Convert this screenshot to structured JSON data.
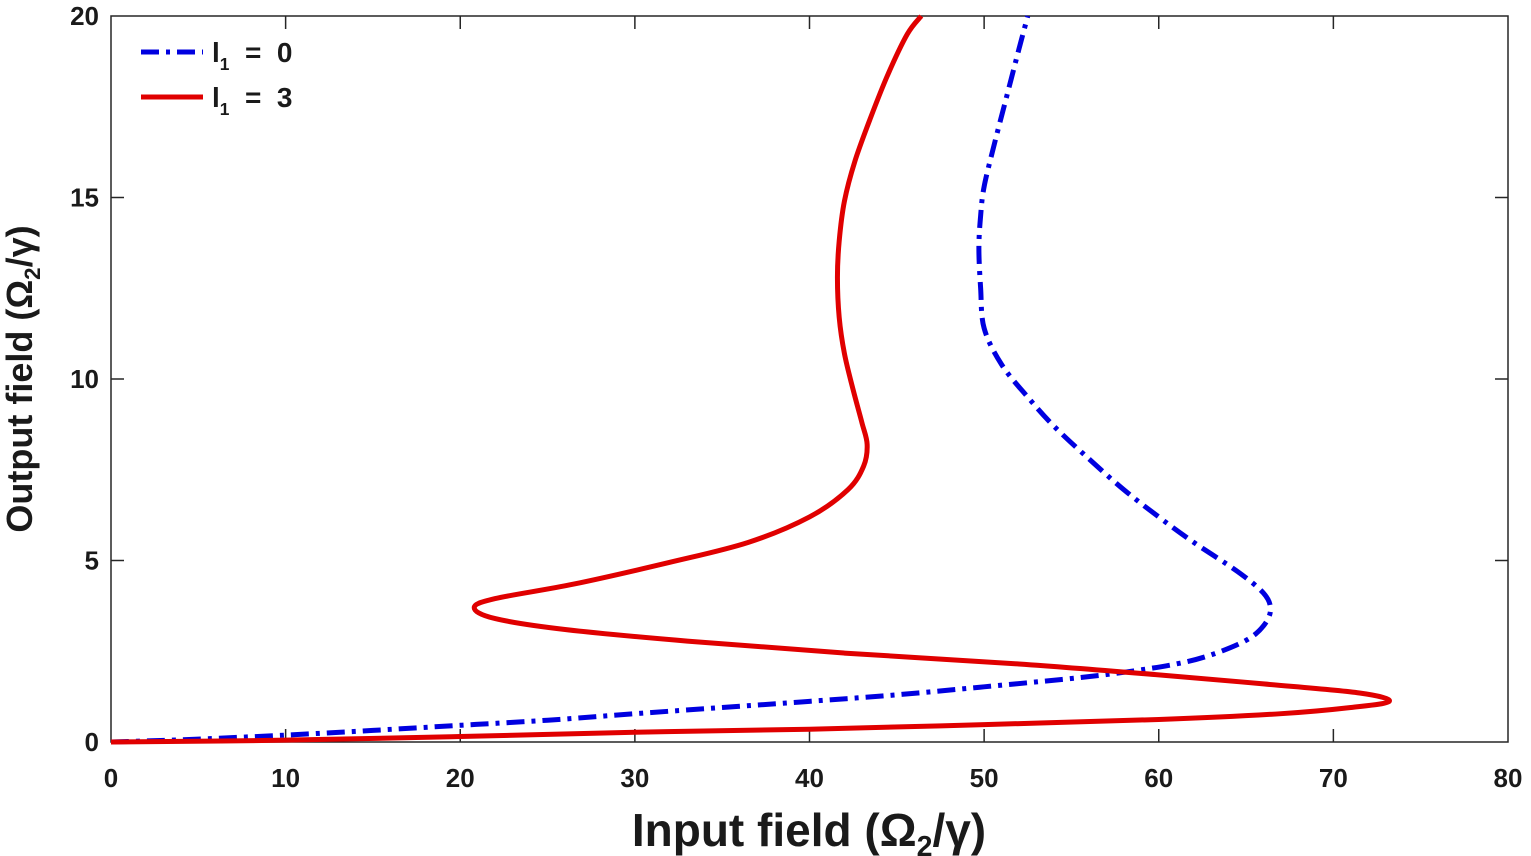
{
  "chart_data": {
    "type": "line",
    "title": "",
    "xlabel": {
      "main": "Input  field  (Ω",
      "sub": "2",
      "tail": "/γ)"
    },
    "ylabel": {
      "main": "Output  field  (Ω",
      "sub": "2",
      "tail": "/γ)"
    },
    "xlim": [
      0,
      80
    ],
    "ylim": [
      0,
      20
    ],
    "xticks": [
      0,
      10,
      20,
      30,
      40,
      50,
      60,
      70,
      80
    ],
    "yticks": [
      0,
      5,
      10,
      15,
      20
    ],
    "xtick_labels": [
      "0",
      "10",
      "20",
      "30",
      "40",
      "50",
      "60",
      "70",
      "80"
    ],
    "ytick_labels": [
      "0",
      "5",
      "10",
      "15",
      "20"
    ],
    "legend_position": "top-left",
    "series": [
      {
        "name": "l1 = 0",
        "legend_main": "l",
        "legend_sub": "1",
        "legend_tail": "  =  0",
        "color": "#0000e0",
        "style": "dashdot",
        "points": [
          [
            0,
            0
          ],
          [
            2,
            0.03
          ],
          [
            5,
            0.08
          ],
          [
            10,
            0.19
          ],
          [
            15,
            0.32
          ],
          [
            20,
            0.46
          ],
          [
            25,
            0.6
          ],
          [
            30,
            0.78
          ],
          [
            35,
            0.95
          ],
          [
            40,
            1.12
          ],
          [
            45,
            1.3
          ],
          [
            50,
            1.52
          ],
          [
            55,
            1.75
          ],
          [
            58,
            1.92
          ],
          [
            61,
            2.15
          ],
          [
            63,
            2.4
          ],
          [
            65,
            2.8
          ],
          [
            66,
            3.2
          ],
          [
            66.4,
            3.65
          ],
          [
            66,
            4.1
          ],
          [
            64.5,
            4.7
          ],
          [
            62,
            5.5
          ],
          [
            60,
            6.2
          ],
          [
            58,
            6.95
          ],
          [
            56,
            7.8
          ],
          [
            54,
            8.7
          ],
          [
            52.5,
            9.5
          ],
          [
            51,
            10.4
          ],
          [
            50,
            11.4
          ],
          [
            49.8,
            12.5
          ],
          [
            49.7,
            13.6
          ],
          [
            49.8,
            14.5
          ],
          [
            50,
            15.3
          ],
          [
            50.6,
            16.5
          ],
          [
            51.3,
            17.8
          ],
          [
            52,
            19.1
          ],
          [
            52.5,
            20
          ]
        ]
      },
      {
        "name": "l1 = 3",
        "legend_main": "l",
        "legend_sub": "1",
        "legend_tail": "  =  3",
        "color": "#e00000",
        "style": "solid",
        "points": [
          [
            0,
            0
          ],
          [
            10,
            0.05
          ],
          [
            20,
            0.15
          ],
          [
            30,
            0.27
          ],
          [
            40,
            0.35
          ],
          [
            50,
            0.48
          ],
          [
            60,
            0.62
          ],
          [
            67,
            0.78
          ],
          [
            71,
            0.95
          ],
          [
            73.2,
            1.12
          ],
          [
            71.5,
            1.35
          ],
          [
            66,
            1.6
          ],
          [
            60,
            1.85
          ],
          [
            52,
            2.15
          ],
          [
            42,
            2.45
          ],
          [
            33,
            2.78
          ],
          [
            26,
            3.1
          ],
          [
            22,
            3.4
          ],
          [
            20.8,
            3.7
          ],
          [
            22,
            3.95
          ],
          [
            26.5,
            4.35
          ],
          [
            32,
            4.95
          ],
          [
            36.5,
            5.5
          ],
          [
            40,
            6.2
          ],
          [
            42.2,
            6.95
          ],
          [
            43.1,
            7.6
          ],
          [
            43.3,
            8.2
          ],
          [
            43,
            8.8
          ],
          [
            42.5,
            9.7
          ],
          [
            42,
            10.7
          ],
          [
            41.7,
            11.7
          ],
          [
            41.6,
            12.8
          ],
          [
            41.7,
            13.8
          ],
          [
            42,
            14.9
          ],
          [
            42.6,
            16
          ],
          [
            43.5,
            17.2
          ],
          [
            44.5,
            18.4
          ],
          [
            45.6,
            19.5
          ],
          [
            46.4,
            20
          ]
        ]
      }
    ]
  }
}
